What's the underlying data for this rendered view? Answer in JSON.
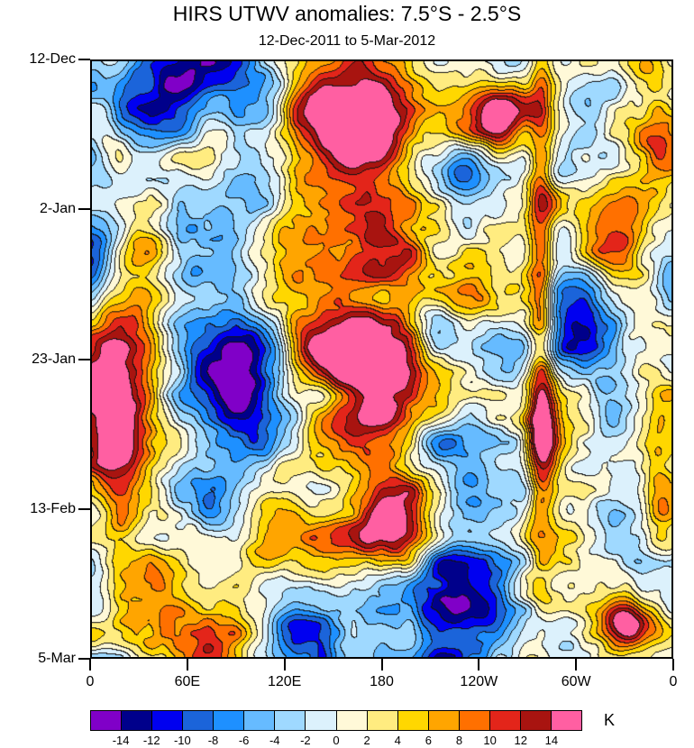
{
  "chart_data": {
    "type": "heatmap",
    "title": "HIRS UTWV anomalies: 7.5°S - 2.5°S",
    "subtitle": "12-Dec-2011 to 5-Mar-2012",
    "x_axis": "longitude",
    "y_axis": "time",
    "x_ticks": [
      "0",
      "60E",
      "120E",
      "180",
      "120W",
      "60W",
      "0"
    ],
    "y_ticks": [
      "12-Dec",
      "2-Jan",
      "23-Jan",
      "13-Feb",
      "5-Mar"
    ],
    "units": "K",
    "contour_interval": 2,
    "value_range": [
      -14,
      14
    ],
    "levels": [
      -14,
      -12,
      -10,
      -8,
      -6,
      -4,
      -2,
      0,
      2,
      4,
      6,
      8,
      10,
      12,
      14
    ],
    "palette": [
      "#8000C8",
      "#00008B",
      "#0000F0",
      "#1B64DA",
      "#1E90FF",
      "#66BBFF",
      "#9FD9FF",
      "#DCF1FC",
      "#FFF9D8",
      "#FFEC80",
      "#FFD700",
      "#FFA500",
      "#FF7000",
      "#E3251A",
      "#A81410",
      "#FF5FA2"
    ],
    "contour_line_color": "#141414",
    "field": {
      "seed": 11,
      "y_stretch": 1.25,
      "octaves": [
        {
          "freq": 5,
          "amp": 10.5
        },
        {
          "freq": 10,
          "amp": 5.5
        },
        {
          "freq": 20,
          "amp": 2.8
        },
        {
          "freq": 40,
          "amp": 1.3
        }
      ],
      "features": [
        {
          "x": 0.5,
          "y": 0.53,
          "sx": 0.095,
          "sy": 0.105,
          "amp": 17
        },
        {
          "x": 0.46,
          "y": 0.115,
          "sx": 0.065,
          "sy": 0.055,
          "amp": 14
        },
        {
          "x": 0.775,
          "y": 0.4,
          "sx": 0.016,
          "sy": 0.3,
          "amp": 12
        },
        {
          "x": 0.78,
          "y": 0.635,
          "sx": 0.022,
          "sy": 0.045,
          "amp": 9
        },
        {
          "x": 0.26,
          "y": 0.555,
          "sx": 0.065,
          "sy": 0.075,
          "amp": -14
        },
        {
          "x": 0.635,
          "y": 0.21,
          "sx": 0.055,
          "sy": 0.06,
          "amp": -13
        },
        {
          "x": 0.66,
          "y": 0.875,
          "sx": 0.065,
          "sy": 0.06,
          "amp": -12
        },
        {
          "x": 0.13,
          "y": 0.075,
          "sx": 0.075,
          "sy": 0.05,
          "amp": -10
        },
        {
          "x": 0.545,
          "y": 0.755,
          "sx": 0.05,
          "sy": 0.055,
          "amp": 13
        },
        {
          "x": 0.92,
          "y": 0.945,
          "sx": 0.032,
          "sy": 0.026,
          "amp": 15
        },
        {
          "x": 0.045,
          "y": 0.62,
          "sx": 0.035,
          "sy": 0.13,
          "amp": 11
        },
        {
          "x": 0.965,
          "y": 0.115,
          "sx": 0.04,
          "sy": 0.075,
          "amp": 10
        },
        {
          "x": 0.35,
          "y": 0.955,
          "sx": 0.055,
          "sy": 0.04,
          "amp": -10
        },
        {
          "x": 0.075,
          "y": 0.33,
          "sx": 0.045,
          "sy": 0.05,
          "amp": 10
        },
        {
          "x": 0.875,
          "y": 0.46,
          "sx": 0.045,
          "sy": 0.06,
          "amp": -9
        },
        {
          "x": 0.3,
          "y": 0.17,
          "sx": 0.05,
          "sy": 0.05,
          "amp": -9
        },
        {
          "x": 0.215,
          "y": 0.78,
          "sx": 0.055,
          "sy": 0.06,
          "amp": -10
        },
        {
          "x": 0.585,
          "y": 0.44,
          "sx": 0.035,
          "sy": 0.05,
          "amp": -9
        },
        {
          "x": 0.7,
          "y": 0.1,
          "sx": 0.05,
          "sy": 0.05,
          "amp": 12
        },
        {
          "x": 0.9,
          "y": 0.27,
          "sx": 0.045,
          "sy": 0.05,
          "amp": 10
        },
        {
          "x": 0.975,
          "y": 0.72,
          "sx": 0.03,
          "sy": 0.1,
          "amp": 8
        },
        {
          "x": 0.03,
          "y": 0.14,
          "sx": 0.03,
          "sy": 0.05,
          "amp": 8
        }
      ]
    }
  }
}
